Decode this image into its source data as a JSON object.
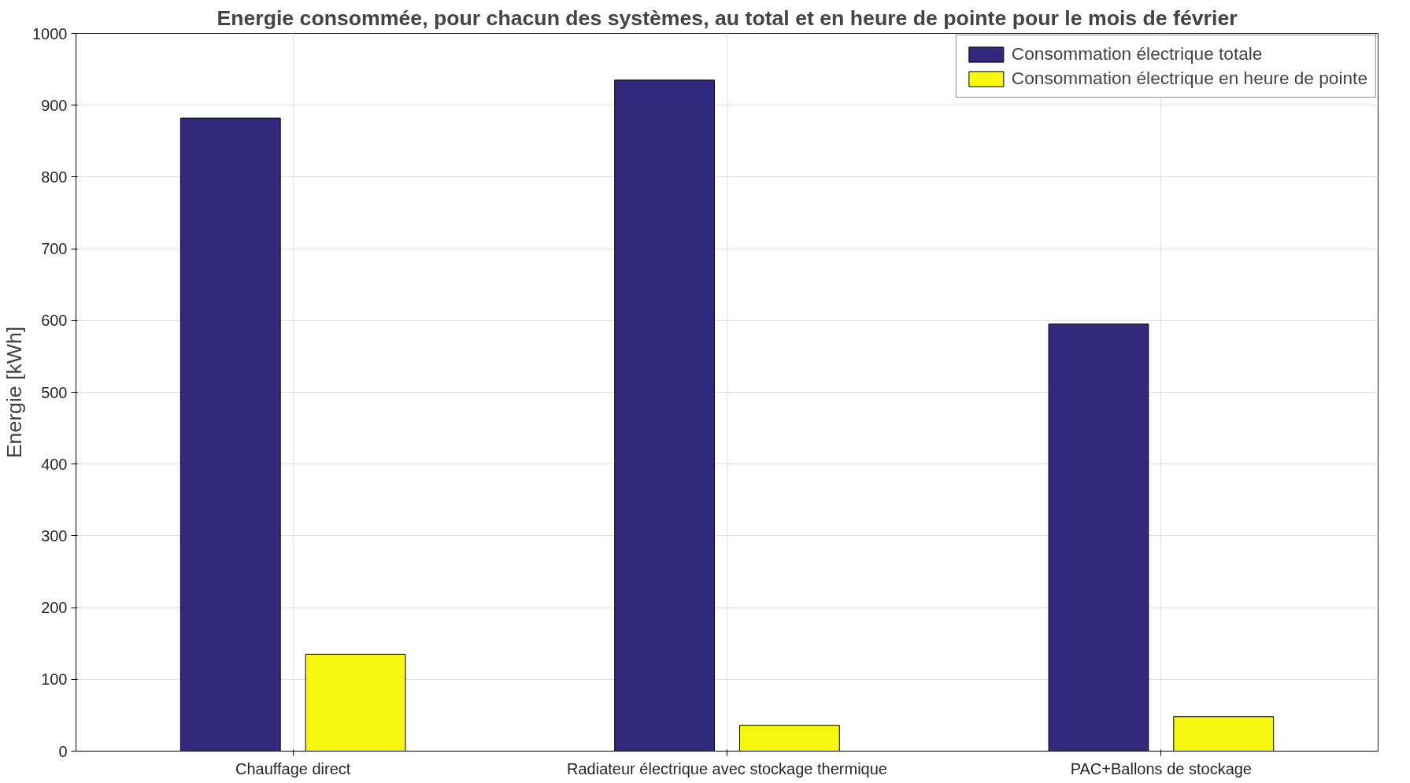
{
  "chart_data": {
    "type": "bar",
    "title": "Energie consommée, pour chacun des systèmes, au total et en heure de pointe pour le mois de février",
    "ylabel": "Energie [kWh]",
    "categories": [
      "Chauffage direct",
      "Radiateur électrique avec stockage thermique",
      "PAC+Ballons de stockage"
    ],
    "series": [
      {
        "name": "Consommation électrique totale",
        "color": "#332a80",
        "values": [
          882,
          935,
          595
        ]
      },
      {
        "name": "Consommation électrique en heure de pointe",
        "color": "#f6f60f",
        "values": [
          135,
          36,
          48
        ]
      }
    ],
    "ylim": [
      0,
      1000
    ],
    "yticks": [
      0,
      100,
      200,
      300,
      400,
      500,
      600,
      700,
      800,
      900,
      1000
    ],
    "grid": true,
    "legend": "top right"
  }
}
